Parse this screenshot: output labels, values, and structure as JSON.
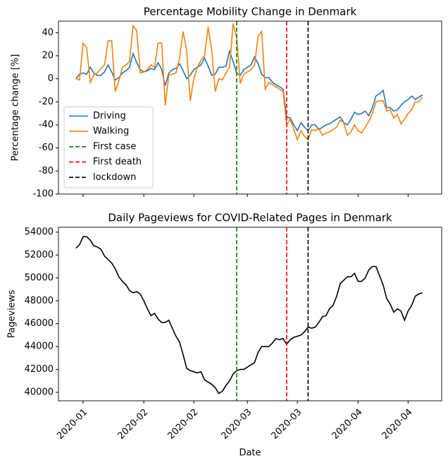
{
  "chart_data": [
    {
      "type": "line",
      "title": "Percentage Mobility Change in Denmark",
      "ylabel": "Percentage change [%]",
      "x": [
        12,
        13,
        14,
        15,
        16,
        17,
        18,
        19,
        20,
        21,
        22,
        23,
        24,
        25,
        26,
        27,
        28,
        29,
        30,
        31,
        32,
        33,
        34,
        35,
        36,
        37,
        38,
        39,
        40,
        41,
        42,
        43,
        44,
        45,
        46,
        47,
        48,
        49,
        50,
        51,
        52,
        53,
        54,
        55,
        56,
        57,
        58,
        59,
        60,
        61,
        62,
        63,
        64,
        65,
        66,
        67,
        68,
        69,
        70,
        71,
        72,
        73,
        74,
        75,
        76,
        77,
        78,
        79,
        80,
        81,
        82,
        83,
        84,
        85,
        86,
        87,
        88,
        89,
        90,
        91,
        92,
        93,
        94,
        95,
        96,
        97,
        98,
        99,
        100,
        101,
        102,
        103,
        104,
        105,
        106,
        107,
        108,
        109
      ],
      "series": [
        {
          "name": "Driving",
          "color": "#1f77b4",
          "values": [
            0,
            4,
            5,
            4,
            10,
            5,
            3,
            3,
            6,
            12,
            6,
            -1,
            1,
            5,
            7,
            10,
            22,
            14,
            8,
            6,
            7,
            9,
            8,
            14,
            8,
            -6,
            5,
            8,
            9,
            13,
            7,
            0,
            3,
            8,
            10,
            12,
            18,
            11,
            3,
            4,
            10,
            10,
            11,
            24,
            15,
            5,
            3,
            8,
            10,
            12,
            19,
            13,
            4,
            1,
            1,
            -3,
            -5,
            -7,
            -9,
            -33,
            -34,
            -40,
            -45,
            -38,
            -42,
            -45,
            -40,
            -40,
            -44,
            -42,
            -40,
            -39,
            -37,
            -35,
            -33,
            -38,
            -40,
            -35,
            -29,
            -31,
            -30,
            -28,
            -32,
            -25,
            -15,
            -13,
            -10,
            -25,
            -25,
            -28,
            -27,
            -23,
            -20,
            -18,
            -15,
            -18,
            -16,
            -14
          ]
        },
        {
          "name": "Walking",
          "color": "#ff7f0e",
          "values": [
            0,
            -1,
            31,
            27,
            -3,
            3,
            5,
            9,
            12,
            33,
            33,
            -11,
            -2,
            10,
            12,
            15,
            46,
            42,
            5,
            6,
            8,
            12,
            10,
            31,
            31,
            -23,
            3,
            4,
            5,
            18,
            41,
            25,
            -19,
            0,
            10,
            16,
            20,
            45,
            25,
            -11,
            0,
            -1,
            5,
            10,
            48,
            36,
            -4,
            4,
            6,
            8,
            12,
            37,
            41,
            -9,
            -3,
            -5,
            -7,
            -9,
            -11,
            -40,
            -35,
            -44,
            -53,
            -45,
            -50,
            -53,
            -44,
            -45,
            -43,
            -49,
            -47,
            -46,
            -44,
            -42,
            -36,
            -38,
            -49,
            -46,
            -40,
            -45,
            -47,
            -42,
            -37,
            -30,
            -20,
            -19,
            -19,
            -28,
            -27,
            -34,
            -31,
            -39,
            -35,
            -30,
            -27,
            -20,
            -20,
            -16
          ]
        }
      ],
      "vlines": [
        {
          "name": "First case",
          "color": "#008000",
          "x": 57
        },
        {
          "name": "First death",
          "color": "#ff0000",
          "x": 71
        },
        {
          "name": "lockdown",
          "color": "#000000",
          "x": 77
        }
      ],
      "xlim": [
        7.1,
        114.4
      ],
      "xticks": [
        14,
        31,
        45,
        60,
        74,
        91,
        105
      ],
      "ylim": [
        -100,
        50
      ],
      "yticks": [
        -100,
        -80,
        -60,
        -40,
        -20,
        0,
        20,
        40
      ],
      "legend": "lower left"
    },
    {
      "type": "line",
      "title": "Daily Pageviews for COVID-Related Pages in Denmark",
      "ylabel": "Pageviews",
      "xlabel": "Date",
      "x": [
        12,
        13,
        14,
        15,
        16,
        17,
        18,
        19,
        20,
        21,
        22,
        23,
        24,
        25,
        26,
        27,
        28,
        29,
        30,
        31,
        32,
        33,
        34,
        35,
        36,
        37,
        38,
        39,
        40,
        41,
        42,
        43,
        44,
        45,
        46,
        47,
        48,
        49,
        50,
        51,
        52,
        53,
        54,
        55,
        56,
        57,
        58,
        59,
        60,
        61,
        62,
        63,
        64,
        65,
        66,
        67,
        68,
        69,
        70,
        71,
        72,
        73,
        74,
        75,
        76,
        77,
        78,
        79,
        80,
        81,
        82,
        83,
        84,
        85,
        86,
        87,
        88,
        89,
        90,
        91,
        92,
        93,
        94,
        95,
        96,
        97,
        98,
        99,
        100,
        101,
        102,
        103,
        104,
        105,
        106,
        107,
        108,
        109
      ],
      "series": [
        {
          "color": "#000000",
          "values": [
            52600,
            52900,
            53600,
            53600,
            53300,
            52800,
            52700,
            52500,
            51900,
            51600,
            51300,
            50800,
            50100,
            49700,
            49400,
            48900,
            48700,
            48800,
            48600,
            48000,
            47300,
            46700,
            46900,
            46400,
            46100,
            46100,
            46300,
            45600,
            44900,
            44400,
            43300,
            42100,
            41900,
            41800,
            41700,
            41800,
            41100,
            40900,
            40700,
            40400,
            39900,
            40100,
            40600,
            41000,
            41600,
            41900,
            42000,
            42000,
            42200,
            42400,
            42600,
            43500,
            44000,
            44000,
            44000,
            44300,
            44700,
            44600,
            44700,
            44200,
            44600,
            44800,
            44900,
            45000,
            45300,
            45700,
            45600,
            45700,
            46100,
            46600,
            46700,
            47300,
            47600,
            48400,
            49500,
            49800,
            50100,
            50100,
            50400,
            49700,
            49700,
            50000,
            50700,
            51000,
            51000,
            50200,
            49400,
            48200,
            47700,
            47000,
            47300,
            47100,
            46300,
            47100,
            47600,
            48400,
            48600,
            48700
          ]
        }
      ],
      "vlines": [
        {
          "color": "#008000",
          "x": 57
        },
        {
          "color": "#ff0000",
          "x": 71
        },
        {
          "color": "#000000",
          "x": 77
        }
      ],
      "xlim": [
        7.1,
        114.4
      ],
      "xticks": [
        {
          "value": 14,
          "label": "2020-01"
        },
        {
          "value": 31,
          "label": "2020-02"
        },
        {
          "value": 45,
          "label": "2020-02"
        },
        {
          "value": 60,
          "label": "2020-03"
        },
        {
          "value": 74,
          "label": "2020-03"
        },
        {
          "value": 91,
          "label": "2020-04"
        },
        {
          "value": 105,
          "label": "2020-04"
        }
      ],
      "ylim": [
        39260,
        54430
      ],
      "yticks": [
        40000,
        42000,
        44000,
        46000,
        48000,
        50000,
        52000,
        54000
      ]
    }
  ]
}
